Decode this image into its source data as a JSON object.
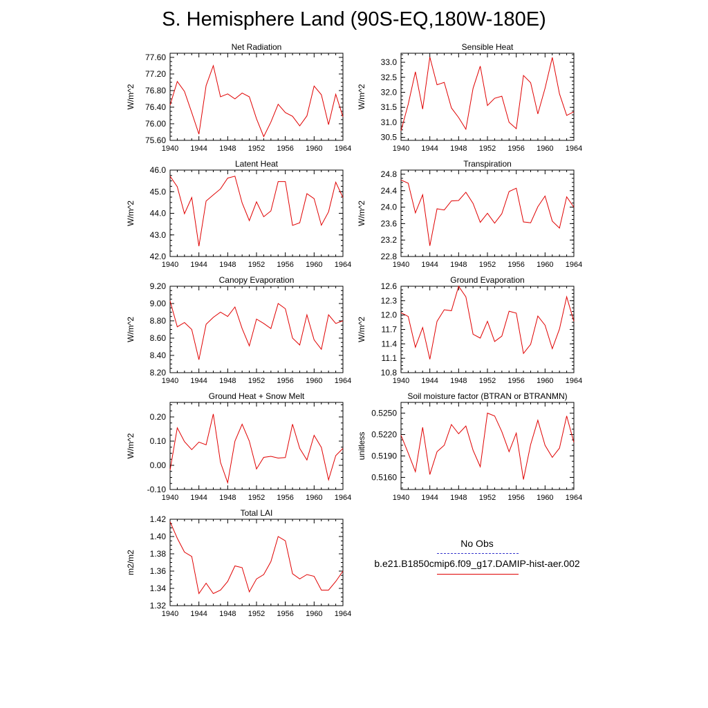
{
  "title": "S. Hemisphere Land (90S-EQ,180W-180E)",
  "legend": {
    "obs_label": "No Obs",
    "obs_color": "#3333cc",
    "model_label": "b.e21.B1850cmip6.f09_g17.DAMIP-hist-aer.002",
    "model_color": "#e00000"
  },
  "chart_data": [
    {
      "type": "line",
      "title": "Net Radiation",
      "ylabel": "W/m^2",
      "xlim": [
        1940,
        1964
      ],
      "ylim": [
        75.6,
        77.7
      ],
      "xticks": [
        "1940",
        "1944",
        "1948",
        "1952",
        "1956",
        "1960",
        "1964"
      ],
      "yticks": [
        "75.60",
        "76.00",
        "76.40",
        "76.80",
        "77.20",
        "77.60"
      ],
      "x": [
        1940,
        1941,
        1942,
        1943,
        1944,
        1945,
        1946,
        1947,
        1948,
        1949,
        1950,
        1951,
        1952,
        1953,
        1954,
        1955,
        1956,
        1957,
        1958,
        1959,
        1960,
        1961,
        1962,
        1963,
        1964
      ],
      "series": [
        {
          "values": [
            76.45,
            77.02,
            76.78,
            76.27,
            75.75,
            76.92,
            77.4,
            76.65,
            76.72,
            76.6,
            76.74,
            76.65,
            76.12,
            75.69,
            76.04,
            76.47,
            76.27,
            76.18,
            75.95,
            76.19,
            76.91,
            76.7,
            75.98,
            76.71,
            76.17
          ]
        }
      ]
    },
    {
      "type": "line",
      "title": "Sensible Heat",
      "ylabel": "W/m^2",
      "xlim": [
        1940,
        1964
      ],
      "ylim": [
        30.4,
        33.3
      ],
      "xticks": [
        "1940",
        "1944",
        "1948",
        "1952",
        "1956",
        "1960",
        "1964"
      ],
      "yticks": [
        "30.5",
        "31.0",
        "31.5",
        "32.0",
        "32.5",
        "33.0"
      ],
      "x": [
        1940,
        1941,
        1942,
        1943,
        1944,
        1945,
        1946,
        1947,
        1948,
        1949,
        1950,
        1951,
        1952,
        1953,
        1954,
        1955,
        1956,
        1957,
        1958,
        1959,
        1960,
        1961,
        1962,
        1963,
        1964
      ],
      "series": [
        {
          "values": [
            30.72,
            31.6,
            32.68,
            31.44,
            33.17,
            32.25,
            32.33,
            31.48,
            31.16,
            30.77,
            32.13,
            32.87,
            31.56,
            31.8,
            31.87,
            31.0,
            30.79,
            32.56,
            32.32,
            31.28,
            32.13,
            33.16,
            31.95,
            31.23,
            31.35
          ]
        }
      ]
    },
    {
      "type": "line",
      "title": "Latent Heat",
      "ylabel": "W/m^2",
      "xlim": [
        1940,
        1964
      ],
      "ylim": [
        42.0,
        46.0
      ],
      "xticks": [
        "1940",
        "1944",
        "1948",
        "1952",
        "1956",
        "1960",
        "1964"
      ],
      "yticks": [
        "42.0",
        "43.0",
        "44.0",
        "45.0",
        "46.0"
      ],
      "x": [
        1940,
        1941,
        1942,
        1943,
        1944,
        1945,
        1946,
        1947,
        1948,
        1949,
        1950,
        1951,
        1952,
        1953,
        1954,
        1955,
        1956,
        1957,
        1958,
        1959,
        1960,
        1961,
        1962,
        1963,
        1964
      ],
      "series": [
        {
          "values": [
            45.72,
            45.23,
            43.98,
            44.73,
            42.48,
            44.57,
            44.85,
            45.13,
            45.63,
            45.72,
            44.48,
            43.66,
            44.53,
            43.84,
            44.11,
            45.47,
            45.47,
            43.44,
            43.56,
            44.91,
            44.68,
            43.45,
            44.07,
            45.44,
            44.73
          ]
        }
      ]
    },
    {
      "type": "line",
      "title": "Transpiration",
      "ylabel": "W/m^2",
      "xlim": [
        1940,
        1964
      ],
      "ylim": [
        22.8,
        24.9
      ],
      "xticks": [
        "1940",
        "1944",
        "1948",
        "1952",
        "1956",
        "1960",
        "1964"
      ],
      "yticks": [
        "22.8",
        "23.2",
        "23.6",
        "24.0",
        "24.4",
        "24.8"
      ],
      "x": [
        1940,
        1941,
        1942,
        1943,
        1944,
        1945,
        1946,
        1947,
        1948,
        1949,
        1950,
        1951,
        1952,
        1953,
        1954,
        1955,
        1956,
        1957,
        1958,
        1959,
        1960,
        1961,
        1962,
        1963,
        1964
      ],
      "series": [
        {
          "values": [
            24.66,
            24.58,
            23.86,
            24.3,
            23.06,
            23.96,
            23.93,
            24.15,
            24.16,
            24.36,
            24.09,
            23.63,
            23.85,
            23.61,
            23.84,
            24.38,
            24.46,
            23.64,
            23.62,
            24.01,
            24.27,
            23.66,
            23.49,
            24.25,
            24.0
          ]
        }
      ]
    },
    {
      "type": "line",
      "title": "Canopy Evaporation",
      "ylabel": "W/m^2",
      "xlim": [
        1940,
        1964
      ],
      "ylim": [
        8.2,
        9.2
      ],
      "xticks": [
        "1940",
        "1944",
        "1948",
        "1952",
        "1956",
        "1960",
        "1964"
      ],
      "yticks": [
        "8.20",
        "8.40",
        "8.60",
        "8.80",
        "9.00",
        "9.20"
      ],
      "x": [
        1940,
        1941,
        1942,
        1943,
        1944,
        1945,
        1946,
        1947,
        1948,
        1949,
        1950,
        1951,
        1952,
        1953,
        1954,
        1955,
        1956,
        1957,
        1958,
        1959,
        1960,
        1961,
        1962,
        1963,
        1964
      ],
      "series": [
        {
          "values": [
            9.03,
            8.73,
            8.78,
            8.7,
            8.35,
            8.76,
            8.84,
            8.9,
            8.85,
            8.96,
            8.71,
            8.51,
            8.82,
            8.77,
            8.71,
            9.0,
            8.94,
            8.6,
            8.52,
            8.87,
            8.58,
            8.47,
            8.87,
            8.77,
            8.8
          ]
        }
      ]
    },
    {
      "type": "line",
      "title": "Ground Evaporation",
      "ylabel": "W/m^2",
      "xlim": [
        1940,
        1964
      ],
      "ylim": [
        10.8,
        12.6
      ],
      "xticks": [
        "1940",
        "1944",
        "1948",
        "1952",
        "1956",
        "1960",
        "1964"
      ],
      "yticks": [
        "10.8",
        "11.1",
        "11.4",
        "11.7",
        "12.0",
        "12.3",
        "12.6"
      ],
      "x": [
        1940,
        1941,
        1942,
        1943,
        1944,
        1945,
        1946,
        1947,
        1948,
        1949,
        1950,
        1951,
        1952,
        1953,
        1954,
        1955,
        1956,
        1957,
        1958,
        1959,
        1960,
        1961,
        1962,
        1963,
        1964
      ],
      "series": [
        {
          "values": [
            12.05,
            11.97,
            11.33,
            11.74,
            11.08,
            11.87,
            12.11,
            12.09,
            12.6,
            12.38,
            11.6,
            11.52,
            11.87,
            11.45,
            11.56,
            12.08,
            12.04,
            11.2,
            11.39,
            11.98,
            11.79,
            11.3,
            11.71,
            12.38,
            11.87
          ]
        }
      ]
    },
    {
      "type": "line",
      "title": "Ground Heat + Snow Melt",
      "ylabel": "W/m^2",
      "xlim": [
        1940,
        1964
      ],
      "ylim": [
        -0.1,
        0.26
      ],
      "xticks": [
        "1940",
        "1944",
        "1948",
        "1952",
        "1956",
        "1960",
        "1964"
      ],
      "yticks": [
        "-0.10",
        "0.00",
        "0.10",
        "0.20"
      ],
      "x": [
        1940,
        1941,
        1942,
        1943,
        1944,
        1945,
        1946,
        1947,
        1948,
        1949,
        1950,
        1951,
        1952,
        1953,
        1954,
        1955,
        1956,
        1957,
        1958,
        1959,
        1960,
        1961,
        1962,
        1963,
        1964
      ],
      "series": [
        {
          "values": [
            -0.02,
            0.155,
            0.098,
            0.065,
            0.096,
            0.085,
            0.212,
            0.012,
            -0.072,
            0.1,
            0.17,
            0.1,
            -0.015,
            0.033,
            0.037,
            0.03,
            0.032,
            0.17,
            0.07,
            0.022,
            0.124,
            0.074,
            -0.06,
            0.04,
            0.07
          ]
        }
      ]
    },
    {
      "type": "line",
      "title": "Soil moisture factor (BTRAN or BTRANMN)",
      "ylabel": "unitless",
      "xlim": [
        1940,
        1964
      ],
      "ylim": [
        0.5143,
        0.5265
      ],
      "xticks": [
        "1940",
        "1944",
        "1948",
        "1952",
        "1956",
        "1960",
        "1964"
      ],
      "yticks": [
        "0.5160",
        "0.5190",
        "0.5220",
        "0.5250"
      ],
      "x": [
        1940,
        1941,
        1942,
        1943,
        1944,
        1945,
        1946,
        1947,
        1948,
        1949,
        1950,
        1951,
        1952,
        1953,
        1954,
        1955,
        1956,
        1957,
        1958,
        1959,
        1960,
        1961,
        1962,
        1963,
        1964
      ],
      "series": [
        {
          "values": [
            0.5219,
            0.5194,
            0.5168,
            0.523,
            0.5164,
            0.5196,
            0.5205,
            0.5234,
            0.5221,
            0.5232,
            0.5198,
            0.5175,
            0.525,
            0.5246,
            0.5224,
            0.5196,
            0.5222,
            0.5157,
            0.5206,
            0.524,
            0.5205,
            0.5188,
            0.5201,
            0.5246,
            0.5209
          ]
        }
      ]
    },
    {
      "type": "line",
      "title": "Total LAI",
      "ylabel": "m2/m2",
      "xlim": [
        1940,
        1964
      ],
      "ylim": [
        1.32,
        1.42
      ],
      "xticks": [
        "1940",
        "1944",
        "1948",
        "1952",
        "1956",
        "1960",
        "1964"
      ],
      "yticks": [
        "1.32",
        "1.34",
        "1.36",
        "1.38",
        "1.40",
        "1.42"
      ],
      "x": [
        1940,
        1941,
        1942,
        1943,
        1944,
        1945,
        1946,
        1947,
        1948,
        1949,
        1950,
        1951,
        1952,
        1953,
        1954,
        1955,
        1956,
        1957,
        1958,
        1959,
        1960,
        1961,
        1962,
        1963,
        1964
      ],
      "series": [
        {
          "values": [
            1.417,
            1.398,
            1.382,
            1.377,
            1.334,
            1.346,
            1.334,
            1.338,
            1.348,
            1.366,
            1.364,
            1.336,
            1.351,
            1.356,
            1.371,
            1.4,
            1.395,
            1.357,
            1.351,
            1.356,
            1.354,
            1.338,
            1.338,
            1.348,
            1.36
          ]
        }
      ]
    }
  ]
}
